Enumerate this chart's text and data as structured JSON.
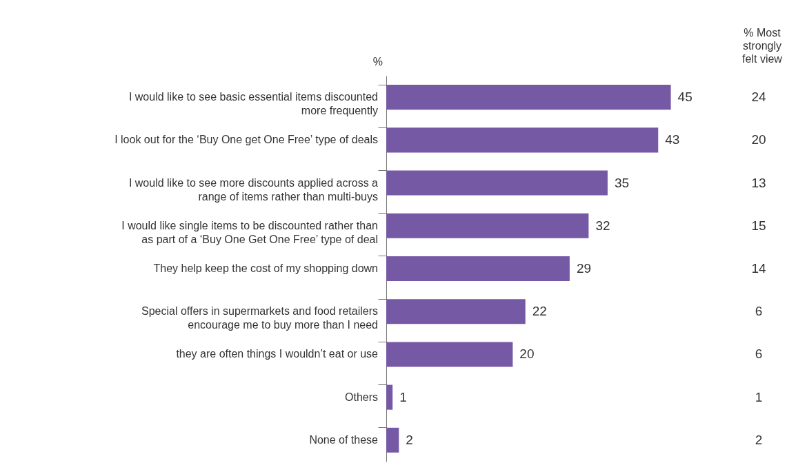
{
  "chart_data": {
    "type": "bar",
    "orientation": "horizontal",
    "data_labels": true,
    "categories": [
      "I  would like to see basic essential items discounted more frequently",
      "I look out for the ‘Buy One get One Free’ type of deals",
      "I would like to see more discounts applied across a range of items rather than multi-buys",
      "I would like single items to be discounted rather than as part of a ‘Buy One Get One Free’ type of deal",
      "They help keep the cost of my shopping down",
      "Special offers in supermarkets and food retailers encourage me to buy more than I need",
      "they are often things I wouldn’t eat or use",
      "Others",
      "None of these"
    ],
    "series": [
      {
        "name": "%",
        "color": "#7559a5",
        "values": [
          45,
          43,
          35,
          32,
          29,
          22,
          20,
          1,
          2
        ]
      }
    ],
    "annotations": [
      "% Most strongly felt view",
      "24",
      "20",
      "13",
      "15",
      "14",
      "6",
      "6",
      "1",
      "2"
    ]
  }
}
